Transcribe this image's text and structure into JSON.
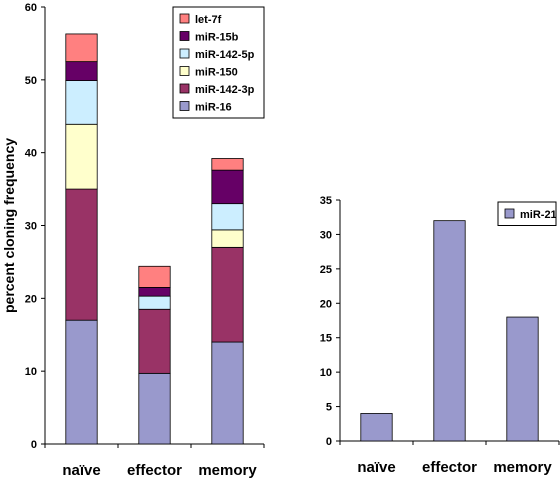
{
  "chart_data": [
    {
      "type": "bar",
      "stacked": true,
      "categories": [
        "naïve",
        "effector",
        "memory"
      ],
      "ylabel": "percent cloning frequency",
      "ylim": [
        0,
        60
      ],
      "yticks": [
        0,
        10,
        20,
        30,
        40,
        50,
        60
      ],
      "legend_position": "top-right",
      "series": [
        {
          "name": "miR-16",
          "color": "#9999cc",
          "values": [
            17,
            9.7,
            14
          ]
        },
        {
          "name": "miR-142-3p",
          "color": "#993366",
          "values": [
            18,
            8.8,
            13
          ]
        },
        {
          "name": "miR-150",
          "color": "#ffffcc",
          "values": [
            8.9,
            0,
            2.4
          ]
        },
        {
          "name": "miR-142-5p",
          "color": "#cceeff",
          "values": [
            6,
            1.8,
            3.6
          ]
        },
        {
          "name": "miR-15b",
          "color": "#660066",
          "values": [
            2.6,
            1.2,
            4.6
          ]
        },
        {
          "name": "let-7f",
          "color": "#ff8080",
          "values": [
            3.8,
            2.9,
            1.6
          ]
        }
      ]
    },
    {
      "type": "bar",
      "categories": [
        "naïve",
        "effector",
        "memory"
      ],
      "ylim": [
        0,
        35
      ],
      "yticks": [
        0,
        5,
        10,
        15,
        20,
        25,
        30,
        35
      ],
      "legend_position": "top-right",
      "series": [
        {
          "name": "miR-21",
          "color": "#9999cc",
          "values": [
            4,
            32,
            18
          ]
        }
      ]
    }
  ]
}
